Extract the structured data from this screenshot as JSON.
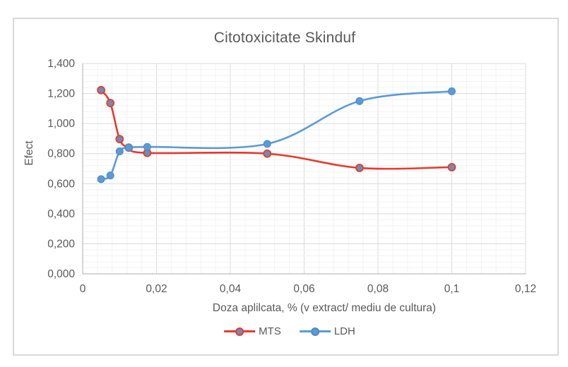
{
  "chart_data": {
    "type": "line",
    "title": "Citotoxicitate Skinduf",
    "xlabel": "Doza aplilcata, % (v extract/ mediu de cultura)",
    "ylabel": "Efect",
    "x": [
      0.005,
      0.0075,
      0.01,
      0.0125,
      0.0175,
      0.05,
      0.075,
      0.1
    ],
    "series": [
      {
        "name": "MTS",
        "color": "#e8392d",
        "marker_fill": "#6e8cb4",
        "marker_stroke": "#e8392d",
        "values": [
          1.223,
          1.137,
          0.897,
          0.84,
          0.805,
          0.8,
          0.705,
          0.71
        ]
      },
      {
        "name": "LDH",
        "color": "#5b9bd5",
        "marker_fill": "#5b9bd5",
        "marker_stroke": "#4d88c7",
        "values": [
          0.63,
          0.655,
          0.815,
          0.84,
          0.845,
          0.865,
          1.15,
          1.215
        ]
      }
    ],
    "xlim": [
      0,
      0.12
    ],
    "ylim": [
      0,
      1.4
    ],
    "x_ticks": [
      0,
      0.02,
      0.04,
      0.06,
      0.08,
      0.1,
      0.12
    ],
    "x_tick_labels": [
      "0",
      "0,02",
      "0,04",
      "0,06",
      "0,08",
      "0,1",
      "0,12"
    ],
    "y_ticks": [
      0,
      0.2,
      0.4,
      0.6,
      0.8,
      1.0,
      1.2,
      1.4
    ],
    "y_tick_labels": [
      "0,000",
      "0,200",
      "0,400",
      "0,600",
      "0,800",
      "1,000",
      "1,200",
      "1,400"
    ],
    "x_minor_step": 0.004,
    "y_minor_step": 0.04,
    "grid": true,
    "smooth": true,
    "legend_position": "bottom"
  },
  "colors": {
    "text": "#595959",
    "grid_minor": "#f2f2f2",
    "grid_major": "#d9d9d9",
    "axis_line": "#bfbfbf",
    "chart_border": "#d9d9d9",
    "background": "#ffffff"
  }
}
